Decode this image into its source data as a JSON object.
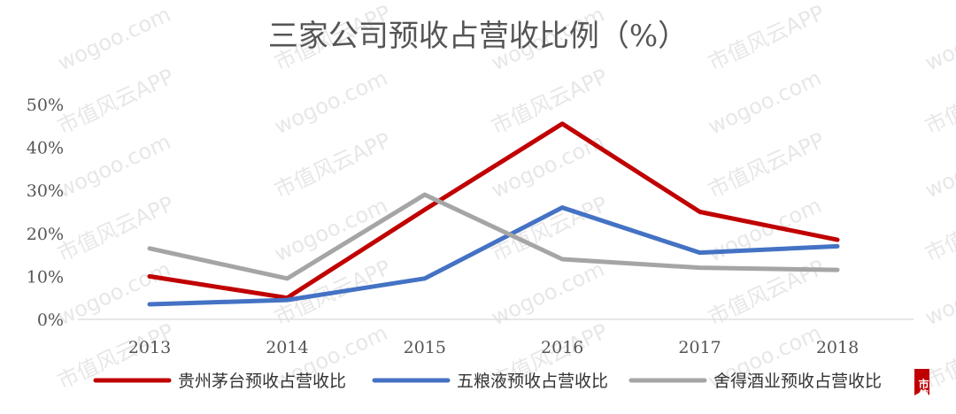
{
  "watermark": {
    "texts": [
      "wogoo.com",
      "市值风云APP"
    ],
    "logo_text": "市值"
  },
  "chart_data": {
    "type": "line",
    "title": "三家公司预收占营收比例（%）",
    "categories": [
      "2013",
      "2014",
      "2015",
      "2016",
      "2017",
      "2018"
    ],
    "y_ticks": [
      "0%",
      "10%",
      "20%",
      "30%",
      "40%",
      "50%"
    ],
    "ylim": [
      0,
      50
    ],
    "grid": false,
    "legend_position": "bottom",
    "series": [
      {
        "name": "贵州茅台预收占营收比",
        "color": "#c00000",
        "values": [
          10,
          5,
          25.5,
          45.5,
          25,
          18.5
        ]
      },
      {
        "name": "五粮液预收占营收比",
        "color": "#4472c4",
        "values": [
          3.5,
          4.5,
          9.5,
          26,
          15.5,
          17
        ]
      },
      {
        "name": "舍得酒业预收占营收比",
        "color": "#a5a5a5",
        "values": [
          16.5,
          9.5,
          29,
          14,
          12,
          11.5
        ]
      }
    ]
  }
}
